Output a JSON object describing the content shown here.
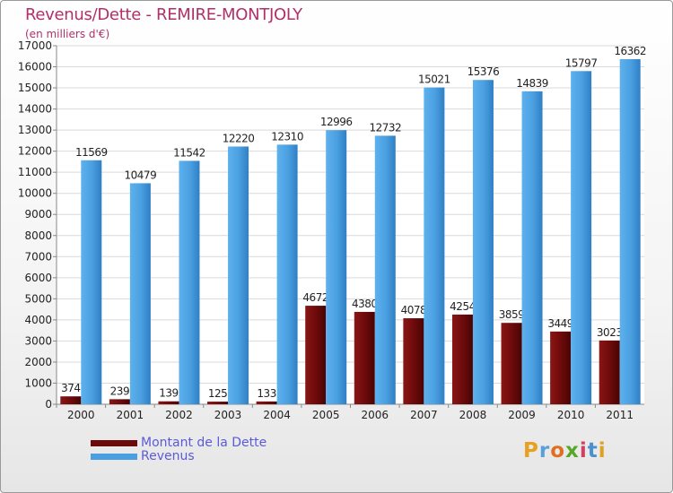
{
  "title": "Revenus/Dette - REMIRE-MONTJOLY",
  "subtitle": "(en milliers d'€)",
  "logo": {
    "text": "Proxiti",
    "colors": [
      "#e8a020",
      "#5aa0d8",
      "#e07020",
      "#58a828",
      "#d04060",
      "#4a90d0",
      "#e0a020"
    ]
  },
  "chart_data": {
    "type": "bar",
    "categories": [
      "2000",
      "2001",
      "2002",
      "2003",
      "2004",
      "2005",
      "2006",
      "2007",
      "2008",
      "2009",
      "2010",
      "2011"
    ],
    "series": [
      {
        "name": "Montant de la Dette",
        "color": "#6b0a0a",
        "values": [
          374,
          239,
          139,
          125,
          133,
          4672,
          4380,
          4078,
          4254,
          3859,
          3449,
          3023
        ],
        "labels": [
          "374",
          "239",
          "139",
          "125",
          "133",
          "4672",
          "4380",
          "4078",
          "4254",
          "3859",
          "3449",
          "3023"
        ]
      },
      {
        "name": "Revenus",
        "color": "#4a9fe0",
        "values": [
          11569,
          10479,
          11542,
          12220,
          12310,
          12996,
          12732,
          15021,
          15376,
          14839,
          15797,
          16362
        ],
        "labels": [
          "11569",
          "10479",
          "11542",
          "12220",
          "12310",
          "12996",
          "12732",
          "15021",
          "15376",
          "14839",
          "15797",
          "16362"
        ]
      }
    ],
    "yticks": [
      "0",
      "1000",
      "2000",
      "3000",
      "4000",
      "5000",
      "6000",
      "7000",
      "8000",
      "9000",
      "10000",
      "11000",
      "12000",
      "13000",
      "14000",
      "15000",
      "16000",
      "17000"
    ],
    "ylim": [
      0,
      17000
    ],
    "grid": true,
    "legend": "bottom-left"
  }
}
